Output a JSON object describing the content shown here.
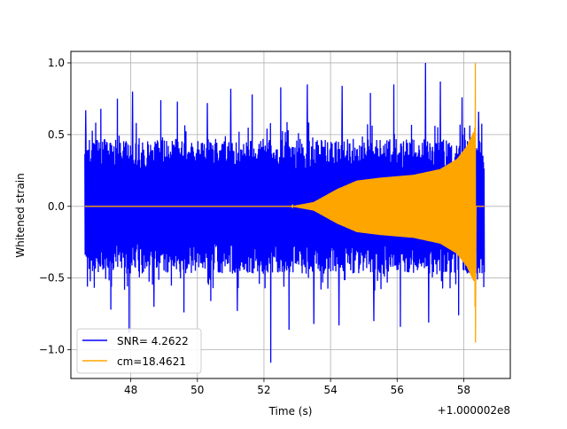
{
  "chart_data": {
    "type": "line",
    "title": "",
    "xlabel": "Time (s)",
    "ylabel": "Whitened strain",
    "x_offset_label": "+1.000002e8",
    "xlim": [
      46.2,
      59.4
    ],
    "ylim": [
      -1.2,
      1.08
    ],
    "x_ticks": [
      48,
      50,
      52,
      54,
      56,
      58
    ],
    "x_tick_labels": [
      "48",
      "50",
      "52",
      "54",
      "56",
      "58"
    ],
    "y_ticks": [
      -1.0,
      -0.5,
      0.0,
      0.5,
      1.0
    ],
    "y_tick_labels": [
      "−1.0",
      "−0.5",
      "0.0",
      "0.5",
      "1.0"
    ],
    "grid": true,
    "legend_position": "lower-left",
    "series": [
      {
        "name": "SNR= 4.2622",
        "color": "#0000ff",
        "kind": "noise",
        "x_range": [
          46.62,
          58.62
        ],
        "typical_envelope": 0.47,
        "max": 1.0,
        "min": -1.1,
        "peaks": [
          {
            "x": 46.65,
            "y": 0.67
          },
          {
            "x": 47.1,
            "y": 0.68
          },
          {
            "x": 47.6,
            "y": 0.75
          },
          {
            "x": 48.05,
            "y": 0.8
          },
          {
            "x": 48.9,
            "y": 0.74
          },
          {
            "x": 49.4,
            "y": 0.73
          },
          {
            "x": 50.3,
            "y": 0.72
          },
          {
            "x": 51.0,
            "y": 0.82
          },
          {
            "x": 51.65,
            "y": 0.78
          },
          {
            "x": 52.5,
            "y": 0.83
          },
          {
            "x": 53.3,
            "y": 0.85
          },
          {
            "x": 54.35,
            "y": 0.84
          },
          {
            "x": 55.2,
            "y": 0.79
          },
          {
            "x": 55.9,
            "y": 0.85
          },
          {
            "x": 56.85,
            "y": 1.0
          },
          {
            "x": 57.3,
            "y": 0.87
          },
          {
            "x": 57.95,
            "y": 0.76
          },
          {
            "x": 58.45,
            "y": 0.66
          }
        ],
        "troughs": [
          {
            "x": 46.7,
            "y": -0.56
          },
          {
            "x": 47.4,
            "y": -0.72
          },
          {
            "x": 47.95,
            "y": -0.88
          },
          {
            "x": 48.7,
            "y": -0.7
          },
          {
            "x": 49.6,
            "y": -0.74
          },
          {
            "x": 50.4,
            "y": -0.66
          },
          {
            "x": 51.2,
            "y": -0.73
          },
          {
            "x": 52.2,
            "y": -1.09
          },
          {
            "x": 52.75,
            "y": -0.86
          },
          {
            "x": 53.5,
            "y": -0.82
          },
          {
            "x": 54.25,
            "y": -0.83
          },
          {
            "x": 55.3,
            "y": -0.8
          },
          {
            "x": 56.1,
            "y": -0.84
          },
          {
            "x": 56.95,
            "y": -0.81
          },
          {
            "x": 57.85,
            "y": -0.76
          },
          {
            "x": 58.45,
            "y": -0.7
          }
        ]
      },
      {
        "name": "cm=18.4621",
        "color": "#ffa500",
        "kind": "chirp",
        "x_range": [
          46.62,
          58.62
        ],
        "envelope": [
          {
            "x": 46.62,
            "amp": 0.0
          },
          {
            "x": 52.8,
            "amp": 0.0
          },
          {
            "x": 53.5,
            "amp": 0.03
          },
          {
            "x": 54.2,
            "amp": 0.12
          },
          {
            "x": 54.8,
            "amp": 0.18
          },
          {
            "x": 55.5,
            "amp": 0.2
          },
          {
            "x": 56.5,
            "amp": 0.22
          },
          {
            "x": 57.3,
            "amp": 0.26
          },
          {
            "x": 57.8,
            "amp": 0.33
          },
          {
            "x": 58.1,
            "amp": 0.42
          },
          {
            "x": 58.3,
            "amp": 0.52
          }
        ],
        "merger_x": 58.35,
        "max": 1.0,
        "min": -0.95
      }
    ]
  }
}
